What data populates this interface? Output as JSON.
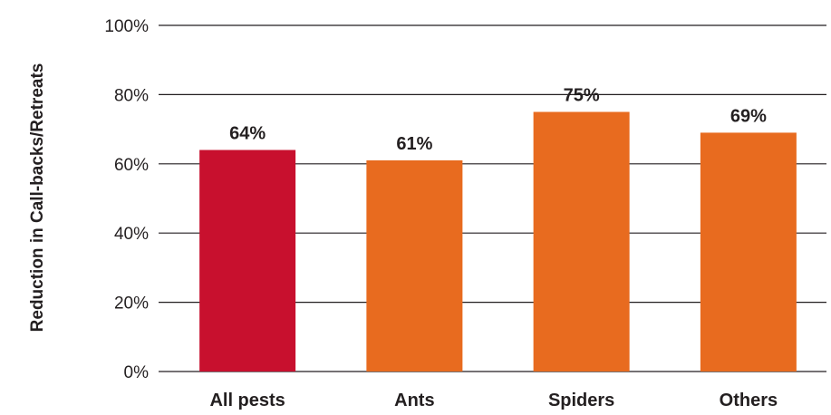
{
  "chart_data": {
    "type": "bar",
    "title": "",
    "xlabel": "",
    "ylabel": "Reduction in Call-backs/Retreats",
    "categories": [
      "All pests",
      "Ants",
      "Spiders",
      "Others"
    ],
    "values": [
      64,
      61,
      75,
      69
    ],
    "value_labels": [
      "64%",
      "61%",
      "75%",
      "69%"
    ],
    "bar_colors": [
      "#c8102e",
      "#e86b1f",
      "#e86b1f",
      "#e86b1f"
    ],
    "ylim": [
      0,
      100
    ],
    "yticks": [
      0,
      20,
      40,
      60,
      80,
      100
    ],
    "ytick_labels": [
      "0%",
      "20%",
      "40%",
      "60%",
      "80%",
      "100%"
    ],
    "grid": true,
    "legend": "none"
  }
}
